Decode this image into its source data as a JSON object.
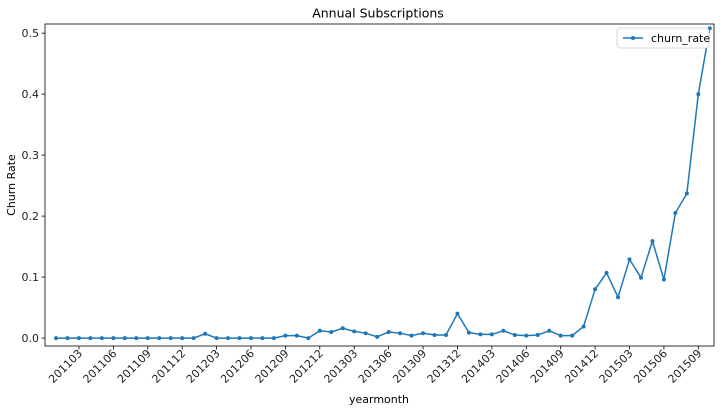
{
  "chart_data": {
    "type": "line",
    "title": "Annual Subscriptions",
    "xlabel": "yearmonth",
    "ylabel": "Churn Rate",
    "ylim": [
      -0.013,
      0.515
    ],
    "yticks": [
      "0.0",
      "0.1",
      "0.2",
      "0.3",
      "0.4",
      "0.5"
    ],
    "x_tick_labels": [
      "201103",
      "201106",
      "201109",
      "201112",
      "201203",
      "201206",
      "201209",
      "201212",
      "201303",
      "201306",
      "201309",
      "201312",
      "201403",
      "201406",
      "201409",
      "201412",
      "201503",
      "201506",
      "201509"
    ],
    "grid": false,
    "legend_position": "top-right",
    "series": [
      {
        "name": "churn_rate",
        "color": "#1f77b4",
        "x": [
          "201101",
          "201102",
          "201103",
          "201104",
          "201105",
          "201106",
          "201107",
          "201108",
          "201109",
          "201110",
          "201111",
          "201112",
          "201201",
          "201202",
          "201203",
          "201204",
          "201205",
          "201206",
          "201207",
          "201208",
          "201209",
          "201210",
          "201211",
          "201212",
          "201301",
          "201302",
          "201303",
          "201304",
          "201305",
          "201306",
          "201307",
          "201308",
          "201309",
          "201310",
          "201311",
          "201312",
          "201401",
          "201402",
          "201403",
          "201404",
          "201405",
          "201406",
          "201407",
          "201408",
          "201409",
          "201410",
          "201411",
          "201412",
          "201501",
          "201502",
          "201503",
          "201504",
          "201505",
          "201506",
          "201507",
          "201508",
          "201509",
          "201510"
        ],
        "values": [
          0.0,
          0.0,
          0.0,
          0.0,
          0.0,
          0.0,
          0.0,
          0.0,
          0.0,
          0.0,
          0.0,
          0.0,
          0.0,
          0.007,
          0.0,
          0.0,
          0.0,
          0.0,
          0.0,
          0.0,
          0.004,
          0.004,
          0.0,
          0.012,
          0.01,
          0.016,
          0.011,
          0.008,
          0.002,
          0.01,
          0.008,
          0.004,
          0.008,
          0.005,
          0.005,
          0.04,
          0.009,
          0.006,
          0.006,
          0.012,
          0.005,
          0.004,
          0.005,
          0.012,
          0.004,
          0.004,
          0.019,
          0.08,
          0.107,
          0.067,
          0.129,
          0.099,
          0.159,
          0.096,
          0.205,
          0.237,
          0.4,
          0.508
        ]
      }
    ]
  }
}
